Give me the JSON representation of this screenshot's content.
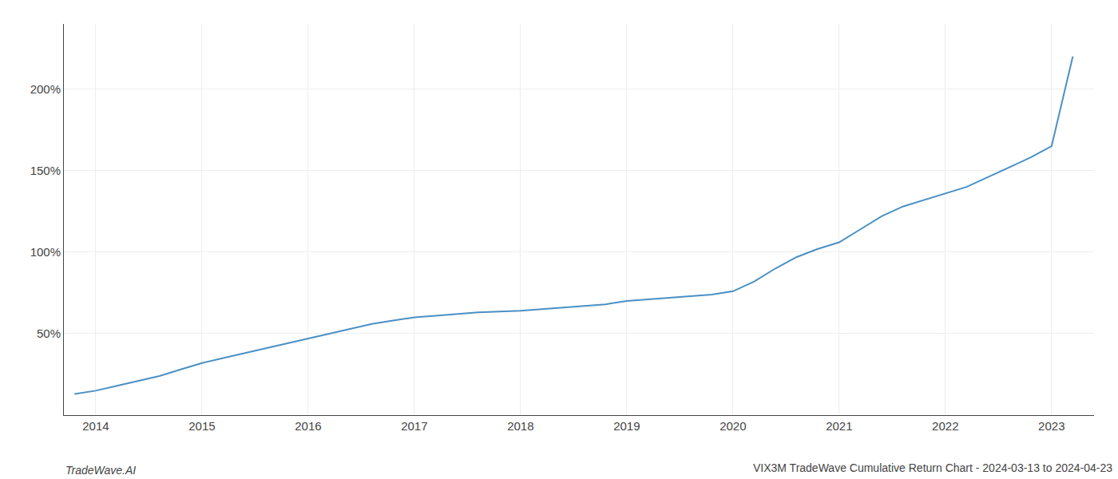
{
  "chart_data": {
    "type": "line",
    "title": "VIX3M TradeWave Cumulative Return Chart - 2024-03-13 to 2024-04-23",
    "annotations": [
      "TradeWave.AI"
    ],
    "x": [
      2013.8,
      2014.0,
      2014.2,
      2014.4,
      2014.6,
      2014.8,
      2015.0,
      2015.2,
      2015.4,
      2015.6,
      2015.8,
      2016.0,
      2016.2,
      2016.4,
      2016.6,
      2016.8,
      2017.0,
      2017.2,
      2017.4,
      2017.6,
      2017.8,
      2018.0,
      2018.2,
      2018.4,
      2018.6,
      2018.8,
      2019.0,
      2019.2,
      2019.4,
      2019.6,
      2019.8,
      2020.0,
      2020.2,
      2020.4,
      2020.6,
      2020.8,
      2021.0,
      2021.2,
      2021.4,
      2021.6,
      2021.8,
      2022.0,
      2022.2,
      2022.4,
      2022.6,
      2022.8,
      2023.0,
      2023.2
    ],
    "values": [
      13,
      15,
      18,
      21,
      24,
      28,
      32,
      35,
      38,
      41,
      44,
      47,
      50,
      53,
      56,
      58,
      60,
      61,
      62,
      63,
      63.5,
      64,
      65,
      66,
      67,
      68,
      70,
      71,
      72,
      73,
      74,
      76,
      82,
      90,
      97,
      102,
      106,
      114,
      122,
      128,
      132,
      136,
      140,
      146,
      152,
      158,
      165,
      220
    ],
    "color": "#4a90c4",
    "xlim": [
      2013.7,
      2023.4
    ],
    "xticks": [
      2014,
      2015,
      2016,
      2017,
      2018,
      2019,
      2020,
      2021,
      2022,
      2023
    ],
    "ylim": [
      0,
      240
    ],
    "yticks": [
      {
        "value": 50,
        "label": "50%"
      },
      {
        "value": 100,
        "label": "100%"
      },
      {
        "value": 150,
        "label": "150%"
      },
      {
        "value": 200,
        "label": "200%"
      }
    ],
    "grid": true
  }
}
